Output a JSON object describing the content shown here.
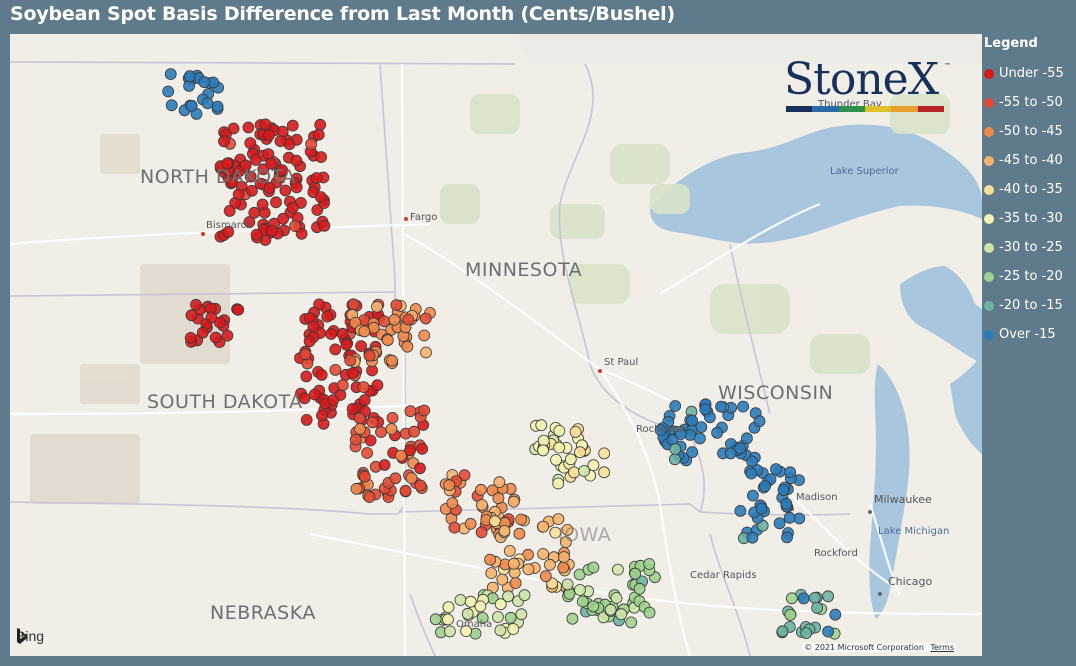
{
  "title": "Soybean Spot Basis Difference from Last Month (Cents/Bushel)",
  "legend": {
    "title": "Legend",
    "items": [
      {
        "label": "Under -55",
        "color": "#d7191c"
      },
      {
        "label": "-55 to -50",
        "color": "#e34a33"
      },
      {
        "label": "-50 to -45",
        "color": "#f08a4b"
      },
      {
        "label": "-45 to -40",
        "color": "#f6b36b"
      },
      {
        "label": "-40 to -35",
        "color": "#fadf97"
      },
      {
        "label": "-35 to -30",
        "color": "#f3f3b1"
      },
      {
        "label": "-30 to -25",
        "color": "#cde6a8"
      },
      {
        "label": "-25 to -20",
        "color": "#9fd28d"
      },
      {
        "label": "-20 to -15",
        "color": "#6bb3a3"
      },
      {
        "label": "Over -15",
        "color": "#2b7bba"
      }
    ]
  },
  "logo": {
    "text": "StoneX",
    "tm": "™",
    "bar_colors": [
      "#16325c",
      "#2c6aa6",
      "#2f8f4e",
      "#e0c12a",
      "#e7a02b",
      "#b8232a"
    ]
  },
  "map": {
    "states": [
      "NORTH DAKOTA",
      "MINNESOTA",
      "SOUTH DAKOTA",
      "WISCONSIN",
      "NEBRASKA",
      "IOWA"
    ],
    "cities": [
      "Bismarck",
      "Fargo",
      "St Paul",
      "Rochester",
      "Madison",
      "Milwaukee",
      "Rockford",
      "Chicago",
      "Omaha",
      "Thunder Bay",
      "Cedar Rapids"
    ],
    "water": [
      "Lake Superior",
      "Lake Michigan"
    ],
    "provider": "Bing",
    "copyright": "© 2021 Microsoft Corporation",
    "terms": "Terms"
  }
}
